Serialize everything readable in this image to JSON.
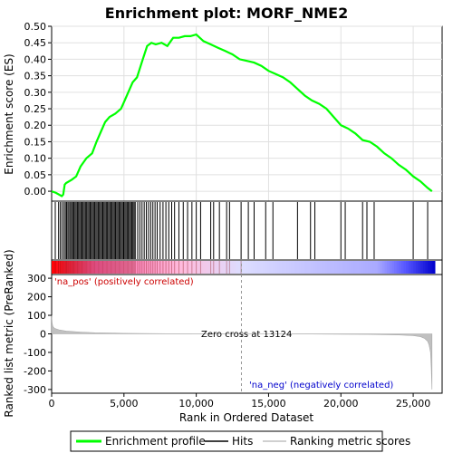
{
  "chart_data": [
    {
      "type": "line",
      "title": "Enrichment plot: MORF_NME2",
      "ylabel": "Enrichment score (ES)",
      "ylim": [
        -0.03,
        0.5
      ],
      "xlim": [
        0,
        27000
      ],
      "yticks": [
        0.0,
        0.05,
        0.1,
        0.15,
        0.2,
        0.25,
        0.3,
        0.35,
        0.4,
        0.45,
        0.5
      ],
      "ytick_labels": [
        "0.00",
        "0.05",
        "0.10",
        "0.15",
        "0.20",
        "0.25",
        "0.30",
        "0.35",
        "0.40",
        "0.45",
        "0.50"
      ],
      "grid": true,
      "series": [
        {
          "name": "Enrichment profile",
          "color": "#00ff00",
          "x": [
            0,
            300,
            700,
            800,
            900,
            1000,
            1400,
            1700,
            2000,
            2400,
            2800,
            3100,
            3400,
            3700,
            4000,
            4400,
            4800,
            5000,
            5300,
            5600,
            5900,
            6300,
            6600,
            6900,
            7200,
            7600,
            8000,
            8400,
            8800,
            9200,
            9600,
            10000,
            10500,
            11000,
            11500,
            12000,
            12500,
            13000,
            13500,
            14000,
            14500,
            15000,
            15500,
            16000,
            16500,
            17000,
            17500,
            18000,
            18500,
            19000,
            19500,
            20000,
            20500,
            21000,
            21500,
            22000,
            22500,
            23000,
            23500,
            24000,
            24500,
            25000,
            25500,
            26000,
            26300
          ],
          "y": [
            0.0,
            -0.005,
            -0.015,
            -0.01,
            0.02,
            0.025,
            0.035,
            0.045,
            0.075,
            0.1,
            0.115,
            0.15,
            0.18,
            0.21,
            0.225,
            0.235,
            0.25,
            0.27,
            0.3,
            0.33,
            0.345,
            0.4,
            0.44,
            0.45,
            0.445,
            0.45,
            0.44,
            0.465,
            0.465,
            0.47,
            0.47,
            0.475,
            0.455,
            0.445,
            0.435,
            0.425,
            0.415,
            0.4,
            0.395,
            0.39,
            0.38,
            0.365,
            0.355,
            0.345,
            0.33,
            0.31,
            0.29,
            0.275,
            0.265,
            0.25,
            0.225,
            0.2,
            0.19,
            0.175,
            0.155,
            0.15,
            0.135,
            0.115,
            0.1,
            0.08,
            0.065,
            0.045,
            0.03,
            0.01,
            0.0
          ]
        }
      ]
    },
    {
      "type": "scatter",
      "title": "",
      "xlabel": "",
      "ylabel": "",
      "xlim": [
        0,
        27000
      ],
      "hits_dense_ranges": [
        [
          200,
          5800
        ]
      ],
      "hits": [
        250,
        480,
        600,
        720,
        850,
        950,
        1030,
        1120,
        1200,
        1300,
        1380,
        1460,
        1540,
        1620,
        1700,
        1780,
        1860,
        1940,
        2020,
        2100,
        2180,
        2260,
        2340,
        2420,
        2500,
        2580,
        2660,
        2740,
        2820,
        2900,
        2980,
        3060,
        3140,
        3220,
        3300,
        3380,
        3460,
        3540,
        3620,
        3700,
        3780,
        3860,
        3940,
        4020,
        4100,
        4180,
        4260,
        4340,
        4420,
        4500,
        4580,
        4660,
        4740,
        4820,
        4900,
        4980,
        5060,
        5140,
        5220,
        5300,
        5380,
        5460,
        5540,
        5620,
        5700,
        5780,
        5950,
        6100,
        6250,
        6400,
        6550,
        6700,
        6850,
        7000,
        7150,
        7300,
        7500,
        7700,
        7900,
        8100,
        8300,
        8500,
        8800,
        9100,
        9400,
        9700,
        10000,
        10300,
        11000,
        11200,
        11600,
        12100,
        12300,
        13100,
        13600,
        14000,
        14800,
        15300,
        17000,
        17900,
        18200,
        20000,
        20300,
        21500,
        21800,
        22300,
        25000,
        26000
      ]
    },
    {
      "type": "heatmap",
      "title": "",
      "xlim": [
        0,
        27000
      ],
      "note_positive_label": "'na_pos' (positively correlated)",
      "note_negative_label": "'na_neg' (negatively correlated)",
      "colors_left_to_right": [
        "#ff0000",
        "#ff66aa",
        "#ffbbdd",
        "#ddddff",
        "#aaaaff",
        "#5555ff",
        "#0000cc"
      ],
      "stops": [
        0,
        3000,
        9000,
        13124,
        22500,
        24500,
        26500
      ]
    },
    {
      "type": "area",
      "title": "",
      "xlabel": "Rank in Ordered Dataset",
      "ylabel": "Ranked list metric (PreRanked)",
      "ylim": [
        -320,
        320
      ],
      "xlim": [
        0,
        27000
      ],
      "yticks": [
        -300,
        -200,
        -100,
        0,
        100,
        200,
        300
      ],
      "xticks": [
        0,
        5000,
        10000,
        15000,
        20000,
        25000
      ],
      "xtick_labels": [
        "0",
        "5,000",
        "10,000",
        "15,000",
        "20,000",
        "25,000"
      ],
      "series": [
        {
          "name": "Ranking metric scores",
          "color": "#c0c0c0",
          "x": [
            0,
            30,
            80,
            200,
            500,
            1000,
            2000,
            3000,
            5000,
            8000,
            13124,
            18000,
            22000,
            24000,
            25000,
            25500,
            25800,
            26000,
            26100,
            26200,
            26250,
            26300
          ],
          "y": [
            100,
            60,
            40,
            30,
            22,
            15,
            10,
            6,
            3,
            1,
            0,
            -1,
            -3,
            -6,
            -10,
            -15,
            -25,
            -40,
            -60,
            -100,
            -180,
            -300
          ]
        }
      ],
      "annotation": "Zero cross at 13124",
      "zero_cross": 13124
    }
  ],
  "legend": {
    "items": [
      {
        "label": "Enrichment profile",
        "color": "#00ff00"
      },
      {
        "label": "Hits",
        "color": "#000000"
      },
      {
        "label": "Ranking metric scores",
        "color": "#c0c0c0"
      }
    ]
  }
}
